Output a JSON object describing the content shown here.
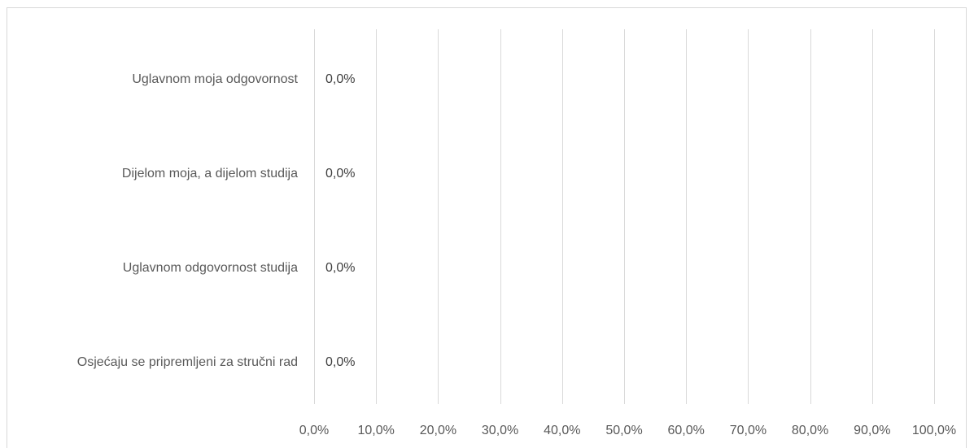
{
  "chart_data": {
    "type": "bar",
    "orientation": "horizontal",
    "title": "",
    "xlabel": "",
    "ylabel": "",
    "categories": [
      "Uglavnom moja odgovornost",
      "Dijelom moja, a dijelom studija",
      "Uglavnom odgovornost studija",
      "Osjećaju se pripremljeni za stručni rad"
    ],
    "values": [
      0.0,
      0.0,
      0.0,
      0.0
    ],
    "data_labels": [
      "0,0%",
      "0,0%",
      "0,0%",
      "0,0%"
    ],
    "xlim": [
      0,
      100
    ],
    "x_ticks": [
      0,
      10,
      20,
      30,
      40,
      50,
      60,
      70,
      80,
      90,
      100
    ],
    "x_tick_labels": [
      "0,0%",
      "10,0%",
      "20,0%",
      "30,0%",
      "40,0%",
      "50,0%",
      "60,0%",
      "70,0%",
      "80,0%",
      "90,0%",
      "100,0%"
    ],
    "grid": "vertical",
    "legend": "none",
    "colors": {
      "grid": "#d9d9d9",
      "text": "#595959",
      "data_label": "#404040",
      "bar": "#4472c4"
    }
  }
}
